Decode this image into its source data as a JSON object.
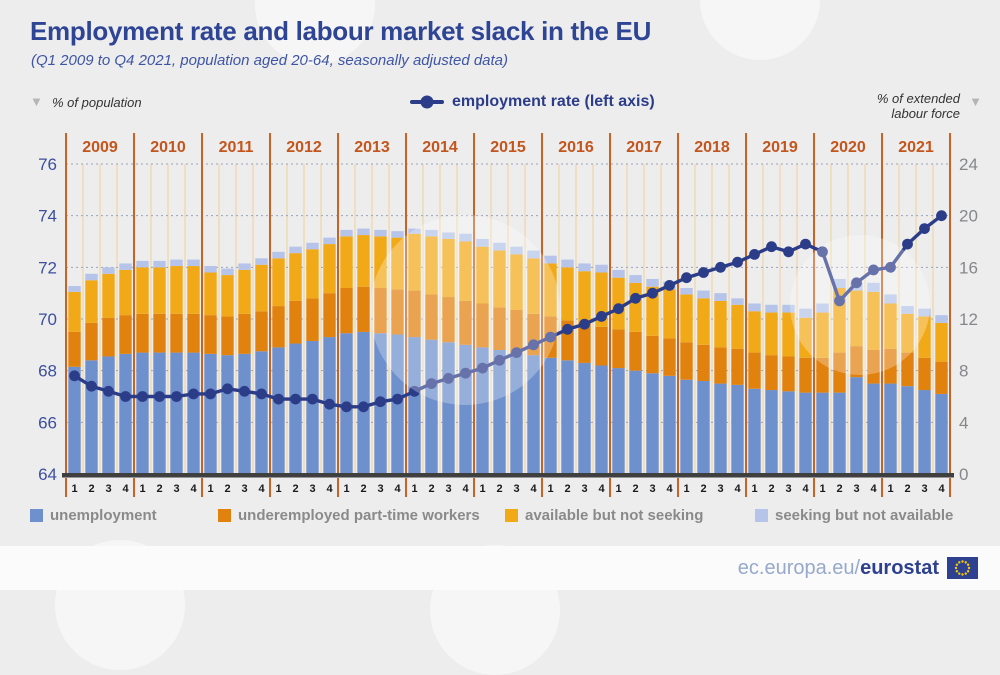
{
  "header": {
    "title": "Employment rate and labour market slack in the EU",
    "subtitle": "(Q1 2009 to Q4 2021, population aged 20-64, seasonally adjusted data)",
    "left_axis_caption": "% of population",
    "right_axis_caption_line1": "% of extended",
    "right_axis_caption_line2": "labour force",
    "line_legend_label": "employment rate (left axis)"
  },
  "icons": {
    "triangle_down": "▼"
  },
  "legend": [
    {
      "label": "unemployment",
      "color": "#6e90cc"
    },
    {
      "label": "underemployed part-time workers",
      "color": "#e2820e"
    },
    {
      "label": "available but not seeking",
      "color": "#f2a918"
    },
    {
      "label": "seeking but not available",
      "color": "#b5c4e8"
    }
  ],
  "footer": {
    "url_prefix": "ec.europa.eu/",
    "url_bold": "eurostat"
  },
  "colors": {
    "title": "#2e4494",
    "year_labels": "#c4551c",
    "year_line": "#c96325",
    "quarter_line": "#f0d6a8",
    "gridline": "#9aa3b8",
    "baseline": "#3f3f3f",
    "left_tick": "#3b4f9e",
    "right_tick": "#85878a",
    "quarter_tick": "#1a1a1a",
    "line": "#2b3c88"
  },
  "chart_data": {
    "type": "bar",
    "stacked": true,
    "title": "Employment rate and labour market slack in the EU",
    "years": [
      2009,
      2010,
      2011,
      2012,
      2013,
      2014,
      2015,
      2016,
      2017,
      2018,
      2019,
      2020,
      2021
    ],
    "quarter_labels": [
      "1",
      "2",
      "3",
      "4"
    ],
    "left_axis": {
      "label": "% of population",
      "min": 64,
      "max": 76,
      "ticks": [
        64,
        66,
        68,
        70,
        72,
        74,
        76
      ]
    },
    "right_axis": {
      "label": "% of extended labour force",
      "min": 0,
      "max": 24,
      "ticks": [
        0,
        4,
        8,
        12,
        16,
        20,
        24
      ]
    },
    "grid": "dashed-horizontal",
    "legend_position": "bottom",
    "bar_series": [
      {
        "name": "unemployment",
        "color": "#6e90cc",
        "axis": "right",
        "values": [
          8.3,
          8.8,
          9.1,
          9.3,
          9.4,
          9.4,
          9.4,
          9.4,
          9.3,
          9.2,
          9.3,
          9.5,
          9.8,
          10.1,
          10.3,
          10.6,
          10.9,
          11.0,
          10.9,
          10.8,
          10.6,
          10.4,
          10.2,
          10.0,
          9.8,
          9.6,
          9.4,
          9.2,
          9.0,
          8.8,
          8.6,
          8.4,
          8.2,
          8.0,
          7.8,
          7.6,
          7.3,
          7.2,
          7.0,
          6.9,
          6.6,
          6.5,
          6.4,
          6.3,
          6.3,
          6.3,
          7.5,
          7.0,
          7.0,
          6.8,
          6.5,
          6.2
        ]
      },
      {
        "name": "underemployed part-time workers",
        "color": "#e2820e",
        "axis": "right",
        "values": [
          2.7,
          2.9,
          3.0,
          3.0,
          3.0,
          3.0,
          3.0,
          3.0,
          3.0,
          3.0,
          3.1,
          3.1,
          3.2,
          3.3,
          3.3,
          3.4,
          3.5,
          3.5,
          3.5,
          3.5,
          3.6,
          3.5,
          3.5,
          3.4,
          3.4,
          3.3,
          3.3,
          3.2,
          3.2,
          3.1,
          3.1,
          3.0,
          3.0,
          3.0,
          2.9,
          2.9,
          2.9,
          2.8,
          2.8,
          2.8,
          2.8,
          2.7,
          2.7,
          2.7,
          2.7,
          3.1,
          2.4,
          2.6,
          2.7,
          2.6,
          2.5,
          2.5
        ]
      },
      {
        "name": "available but not seeking",
        "color": "#f2a918",
        "axis": "right",
        "values": [
          3.1,
          3.3,
          3.4,
          3.5,
          3.6,
          3.6,
          3.7,
          3.7,
          3.3,
          3.2,
          3.4,
          3.6,
          3.7,
          3.7,
          3.8,
          3.8,
          4.0,
          4.0,
          4.0,
          4.0,
          4.4,
          4.5,
          4.5,
          4.6,
          4.4,
          4.4,
          4.3,
          4.3,
          4.1,
          4.1,
          4.0,
          4.2,
          4.0,
          3.8,
          3.8,
          3.8,
          3.7,
          3.6,
          3.6,
          3.4,
          3.2,
          3.3,
          3.4,
          3.1,
          3.5,
          5.0,
          4.3,
          4.5,
          3.5,
          3.0,
          3.2,
          3.0
        ]
      },
      {
        "name": "seeking but not available",
        "color": "#b5c4e8",
        "axis": "right",
        "values": [
          0.45,
          0.5,
          0.5,
          0.5,
          0.5,
          0.5,
          0.5,
          0.5,
          0.5,
          0.5,
          0.5,
          0.5,
          0.5,
          0.5,
          0.5,
          0.5,
          0.5,
          0.5,
          0.5,
          0.5,
          0.4,
          0.5,
          0.5,
          0.6,
          0.6,
          0.6,
          0.6,
          0.6,
          0.6,
          0.6,
          0.6,
          0.6,
          0.6,
          0.6,
          0.6,
          0.6,
          0.5,
          0.6,
          0.6,
          0.5,
          0.6,
          0.6,
          0.6,
          0.7,
          0.7,
          0.7,
          0.6,
          0.7,
          0.7,
          0.6,
          0.6,
          0.6
        ]
      }
    ],
    "line_series": {
      "name": "employment rate (left axis)",
      "color": "#2b3c88",
      "axis": "left",
      "values": [
        67.8,
        67.4,
        67.2,
        67.0,
        67.0,
        67.0,
        67.0,
        67.1,
        67.1,
        67.3,
        67.2,
        67.1,
        66.9,
        66.9,
        66.9,
        66.7,
        66.6,
        66.6,
        66.8,
        66.9,
        67.2,
        67.5,
        67.7,
        67.9,
        68.1,
        68.4,
        68.7,
        69.0,
        69.3,
        69.6,
        69.8,
        70.1,
        70.4,
        70.8,
        71.0,
        71.3,
        71.6,
        71.8,
        72.0,
        72.2,
        72.5,
        72.8,
        72.6,
        72.9,
        72.6,
        70.7,
        71.4,
        71.9,
        72.0,
        72.9,
        73.5,
        74.0
      ]
    }
  }
}
